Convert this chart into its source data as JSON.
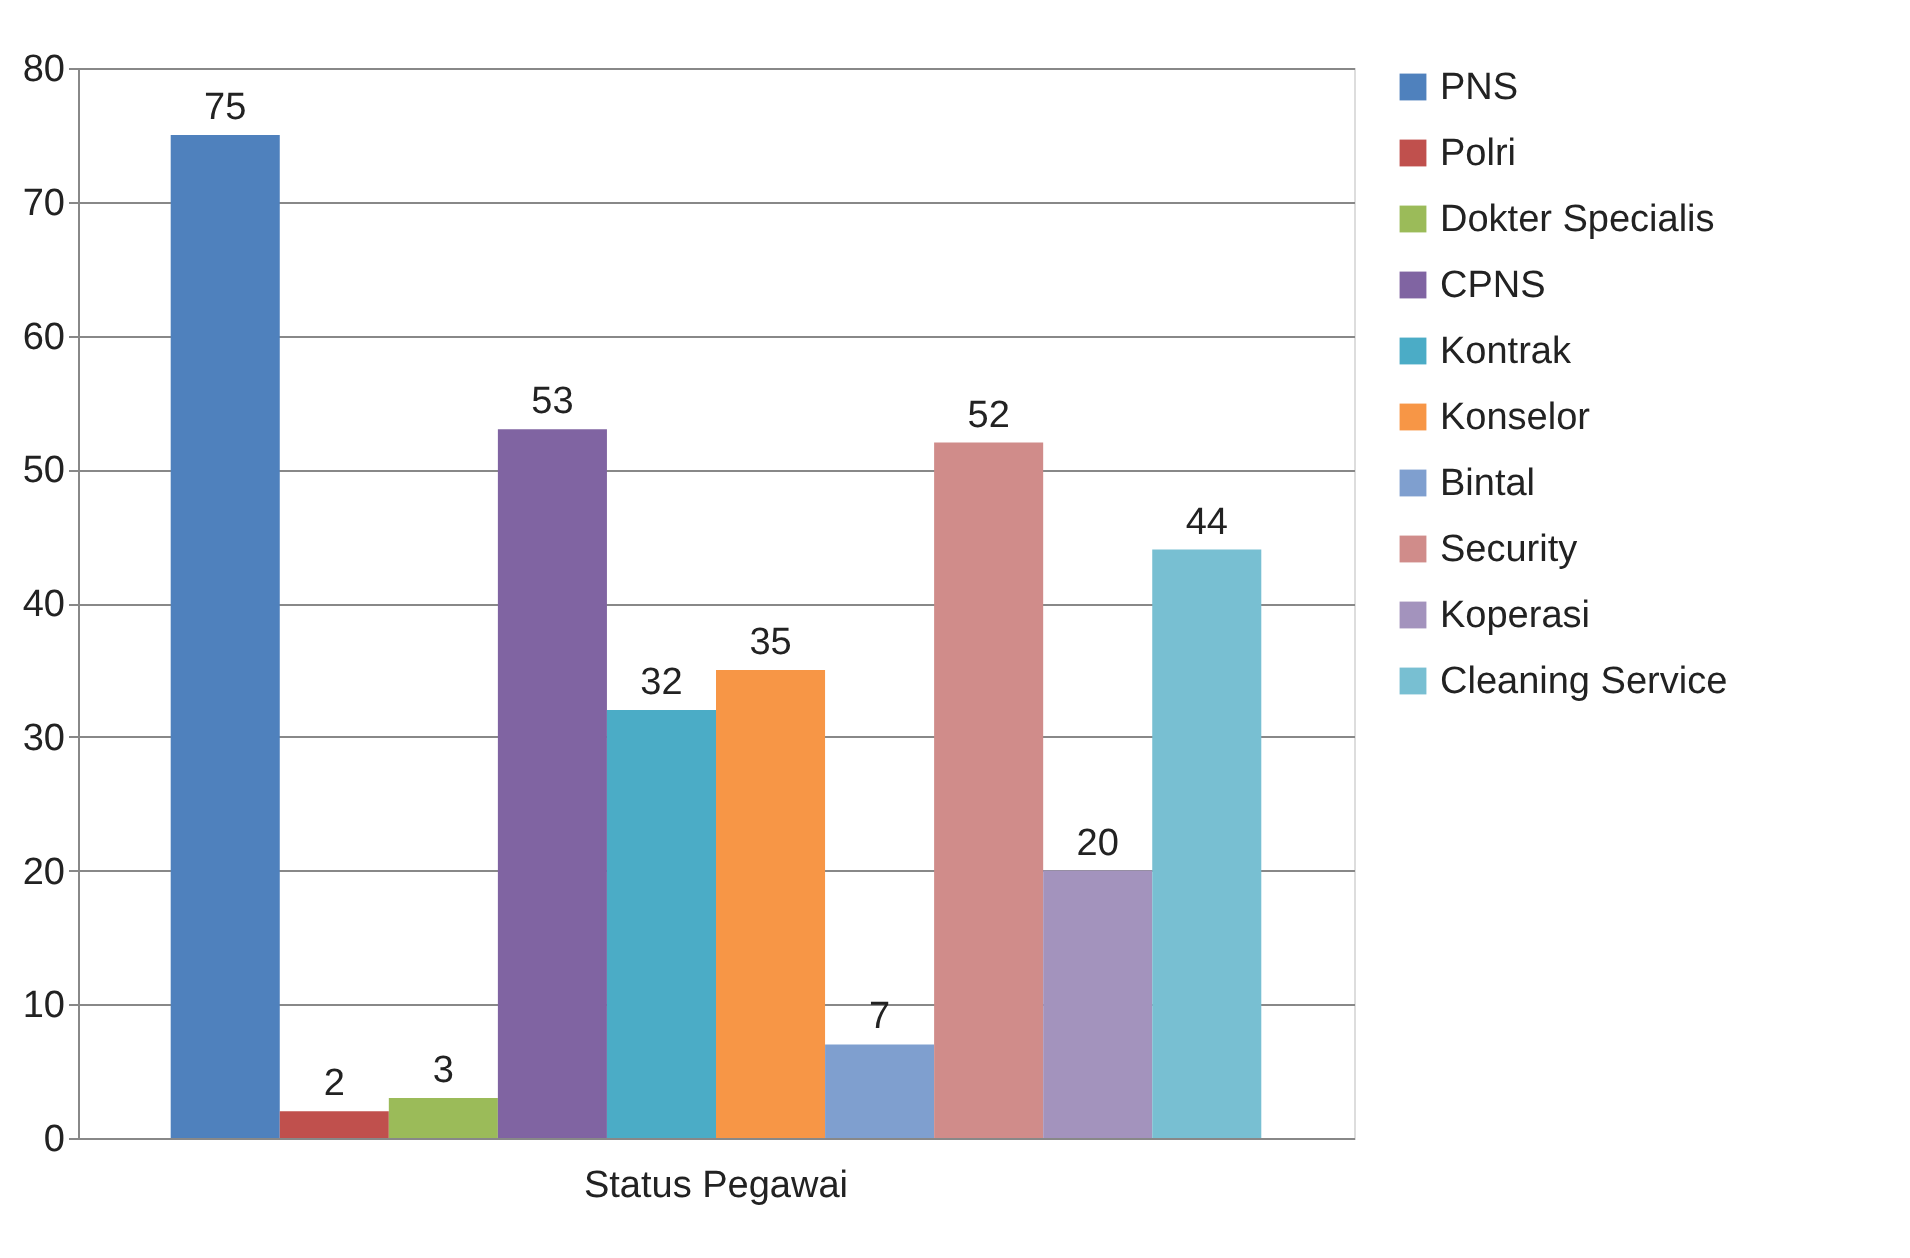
{
  "chart_data": {
    "type": "bar",
    "categories": [
      "Status Pegawai"
    ],
    "series": [
      {
        "name": "PNS",
        "color": "#4f81bd",
        "values": [
          75
        ]
      },
      {
        "name": "Polri",
        "color": "#c0504d",
        "values": [
          2
        ]
      },
      {
        "name": "Dokter Specialis",
        "color": "#9bbb59",
        "values": [
          3
        ]
      },
      {
        "name": "CPNS",
        "color": "#8064a2",
        "values": [
          53
        ]
      },
      {
        "name": "Kontrak",
        "color": "#4bacc6",
        "values": [
          32
        ]
      },
      {
        "name": "Konselor",
        "color": "#f79646",
        "values": [
          35
        ]
      },
      {
        "name": "Bintal",
        "color": "#7f9fcf",
        "values": [
          7
        ]
      },
      {
        "name": "Security",
        "color": "#d08c8a",
        "values": [
          52
        ]
      },
      {
        "name": "Koperasi",
        "color": "#a393bd",
        "values": [
          20
        ]
      },
      {
        "name": "Cleaning Service",
        "color": "#78bfd2",
        "values": [
          44
        ]
      }
    ],
    "ylim": [
      0,
      80
    ],
    "yticks": [
      0,
      10,
      20,
      30,
      40,
      50,
      60,
      70,
      80
    ],
    "grid": "y",
    "legend": "right",
    "data_labels": true
  }
}
